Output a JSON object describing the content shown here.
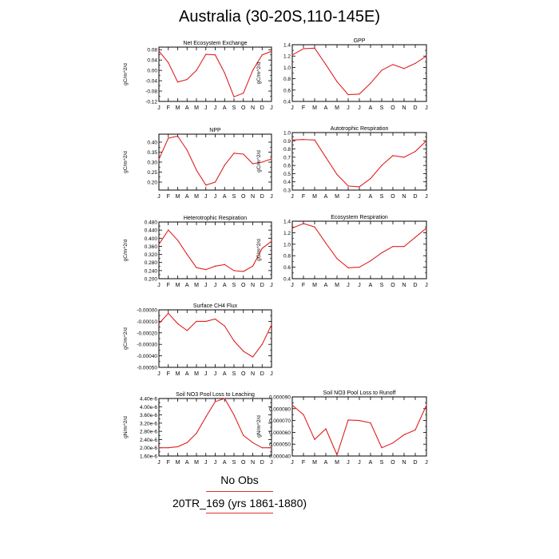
{
  "page": {
    "title": "Australia (30-20S,110-145E)",
    "legend": {
      "obs_label": "No Obs",
      "case_label": "20TR_169 (yrs 1861-1880)",
      "line_color": "#e03030"
    }
  },
  "chart_data": [
    {
      "type": "line",
      "title": "Net Ecosystem Exchange",
      "xlabel": "",
      "ylabel": "gC/m^2/d",
      "categories": [
        "J",
        "F",
        "M",
        "A",
        "M",
        "J",
        "J",
        "A",
        "S",
        "O",
        "N",
        "D",
        "J"
      ],
      "values": [
        0.075,
        0.03,
        -0.045,
        -0.035,
        0.0,
        0.062,
        0.06,
        -0.01,
        -0.102,
        -0.088,
        0.0,
        0.06,
        0.074
      ],
      "ylim": [
        -0.12,
        0.09
      ],
      "yticks": [
        0.08,
        0.04,
        0.0,
        -0.04,
        -0.08,
        -0.12
      ],
      "yticklabels": [
        "0.08",
        "0.04",
        "0.00",
        "-0.04",
        "-0.08",
        "-0.12"
      ],
      "color": "#e02020"
    },
    {
      "type": "line",
      "title": "GPP",
      "xlabel": "",
      "ylabel": "gC/m^2/d",
      "categories": [
        "J",
        "F",
        "M",
        "A",
        "M",
        "J",
        "J",
        "A",
        "S",
        "O",
        "N",
        "D",
        "J"
      ],
      "values": [
        1.22,
        1.33,
        1.34,
        1.05,
        0.75,
        0.52,
        0.53,
        0.72,
        0.95,
        1.05,
        0.98,
        1.07,
        1.2
      ],
      "ylim": [
        0.4,
        1.4
      ],
      "yticks": [
        1.4,
        1.2,
        1.0,
        0.8,
        0.6,
        0.4
      ],
      "yticklabels": [
        "1.4",
        "1.2",
        "1.0",
        "0.8",
        "0.6",
        "0.4"
      ],
      "color": "#e02020"
    },
    {
      "type": "line",
      "title": "NPP",
      "xlabel": "",
      "ylabel": "gC/m^2/d",
      "categories": [
        "J",
        "F",
        "M",
        "A",
        "M",
        "J",
        "J",
        "A",
        "S",
        "O",
        "N",
        "D",
        "J"
      ],
      "values": [
        0.315,
        0.42,
        0.43,
        0.36,
        0.26,
        0.185,
        0.2,
        0.285,
        0.345,
        0.34,
        0.292,
        0.3,
        0.316
      ],
      "ylim": [
        0.16,
        0.44
      ],
      "yticks": [
        0.4,
        0.35,
        0.3,
        0.25,
        0.2
      ],
      "yticklabels": [
        "0.40",
        "0.35",
        "0.30",
        "0.25",
        "0.20"
      ],
      "color": "#e02020"
    },
    {
      "type": "line",
      "title": "Autotrophic Respiration",
      "xlabel": "",
      "ylabel": "gC/m^2/d",
      "categories": [
        "J",
        "F",
        "M",
        "A",
        "M",
        "J",
        "J",
        "A",
        "S",
        "O",
        "N",
        "D",
        "J"
      ],
      "values": [
        0.91,
        0.915,
        0.91,
        0.7,
        0.49,
        0.35,
        0.34,
        0.44,
        0.6,
        0.72,
        0.7,
        0.77,
        0.9
      ],
      "ylim": [
        0.3,
        1.0
      ],
      "yticks": [
        1.0,
        0.9,
        0.8,
        0.7,
        0.6,
        0.5,
        0.4,
        0.3
      ],
      "yticklabels": [
        "1.0",
        "0.9",
        "0.8",
        "0.7",
        "0.6",
        "0.5",
        "0.4",
        "0.3"
      ],
      "color": "#e02020"
    },
    {
      "type": "line",
      "title": "Heterotrophic Respiration",
      "xlabel": "",
      "ylabel": "gC/m^2/d",
      "categories": [
        "J",
        "F",
        "M",
        "A",
        "M",
        "J",
        "J",
        "A",
        "S",
        "O",
        "N",
        "D",
        "J"
      ],
      "values": [
        0.37,
        0.44,
        0.39,
        0.32,
        0.255,
        0.245,
        0.262,
        0.27,
        0.24,
        0.236,
        0.262,
        0.35,
        0.385
      ],
      "ylim": [
        0.2,
        0.48
      ],
      "yticks": [
        0.48,
        0.44,
        0.4,
        0.36,
        0.32,
        0.28,
        0.24,
        0.2
      ],
      "yticklabels": [
        "0.480",
        "0.440",
        "0.400",
        "0.360",
        "0.320",
        "0.280",
        "0.240",
        "0.200"
      ],
      "color": "#e02020"
    },
    {
      "type": "line",
      "title": "Ecosystem Respiration",
      "xlabel": "",
      "ylabel": "gC/m^2/d",
      "categories": [
        "J",
        "F",
        "M",
        "A",
        "M",
        "J",
        "J",
        "A",
        "S",
        "O",
        "N",
        "D",
        "J"
      ],
      "values": [
        1.28,
        1.36,
        1.3,
        1.02,
        0.75,
        0.59,
        0.6,
        0.71,
        0.85,
        0.96,
        0.96,
        1.12,
        1.28
      ],
      "ylim": [
        0.4,
        1.4
      ],
      "yticks": [
        1.4,
        1.2,
        1.0,
        0.8,
        0.6,
        0.4
      ],
      "yticklabels": [
        "1.4",
        "1.2",
        "1.0",
        "0.8",
        "0.6",
        "0.4"
      ],
      "color": "#e02020"
    },
    {
      "type": "line",
      "title": "Surface CH4 Flux",
      "xlabel": "",
      "ylabel": "gC/m^2/d",
      "categories": [
        "J",
        "F",
        "M",
        "A",
        "M",
        "J",
        "J",
        "A",
        "S",
        "O",
        "N",
        "D",
        "J"
      ],
      "values": [
        -0.00012,
        -3e-05,
        -0.00012,
        -0.00018,
        -0.0001,
        -0.0001,
        -8e-05,
        -0.00014,
        -0.00027,
        -0.00036,
        -0.00041,
        -0.0003,
        -0.00013
      ],
      "ylim": [
        -0.0005,
        0.0
      ],
      "yticks": [
        0.0,
        -0.0001,
        -0.0002,
        -0.0003,
        -0.0004,
        -0.0005
      ],
      "yticklabels": [
        "-0.00000",
        "-0.00010",
        "-0.00020",
        "-0.00030",
        "-0.00040",
        "-0.00050"
      ],
      "color": "#e02020"
    },
    {
      "type": "line",
      "title": "Soil NO3 Pool Loss to Leaching",
      "xlabel": "",
      "ylabel": "gN/m^2/d",
      "categories": [
        "J",
        "F",
        "M",
        "A",
        "M",
        "J",
        "J",
        "A",
        "S",
        "O",
        "N",
        "D",
        "J"
      ],
      "values": [
        2e-06,
        2e-06,
        2.05e-06,
        2.25e-06,
        2.7e-06,
        3.5e-06,
        4.25e-06,
        4.4e-06,
        3.6e-06,
        2.6e-06,
        2.25e-06,
        2e-06,
        2e-06
      ],
      "ylim": [
        1.6e-06,
        4.4e-06
      ],
      "yticks": [
        4.4e-06,
        4e-06,
        3.6e-06,
        3.2e-06,
        2.8e-06,
        2.4e-06,
        2e-06,
        1.6e-06
      ],
      "yticklabels": [
        "4.40e-6",
        "4.00e-6",
        "3.60e-6",
        "3.20e-6",
        "2.80e-6",
        "2.40e-6",
        "2.00e-6",
        "1.60e-6"
      ],
      "color": "#e02020"
    },
    {
      "type": "line",
      "title": "Soil NO3 Pool Loss to Runoff",
      "xlabel": "",
      "ylabel": "gN/m^2/d",
      "categories": [
        "J",
        "F",
        "M",
        "A",
        "M",
        "J",
        "J",
        "A",
        "S",
        "O",
        "N",
        "D",
        "J"
      ],
      "values": [
        8.3e-05,
        7.5e-05,
        5.4e-05,
        6.3e-05,
        4.1e-05,
        7.05e-05,
        7e-05,
        6.8e-05,
        4.7e-05,
        5.1e-05,
        5.8e-05,
        6.2e-05,
        8.3e-05
      ],
      "ylim": [
        4e-05,
        9e-05
      ],
      "yticks": [
        9e-05,
        8e-05,
        7e-05,
        6e-05,
        5e-05,
        4e-05
      ],
      "yticklabels": [
        "0.000090",
        "0.000080",
        "0.000070",
        "0.000060",
        "0.000050",
        "0.000040"
      ],
      "color": "#e02020"
    }
  ]
}
